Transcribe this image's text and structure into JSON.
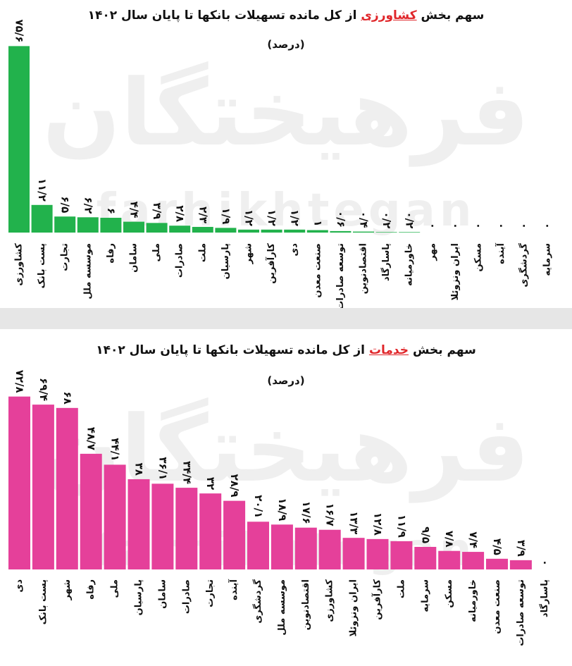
{
  "watermark": {
    "text": "فرهیختگان",
    "latin": "farhikhtegan"
  },
  "chart_data": [
    {
      "type": "bar",
      "title": [
        "سهم  بخش",
        "کشاورزی",
        "از کل مانده تسهیلات بانکها تا پایان سال ۱۴۰۲"
      ],
      "subtitle": "(درصد)",
      "color": "#22b24c",
      "categories": [
        "کشاورزی",
        "پست بانک",
        "تجارت",
        "موسسه ملل",
        "رفاه",
        "سامان",
        "ملی",
        "صادرات",
        "ملت",
        "پارسیان",
        "شهر",
        "کارآفرین",
        "دی",
        "صنعت معدن",
        "توسعه صادرات",
        "اقتصادنوین",
        "پاسارگاد",
        "خاورمیانه",
        "مهر",
        "ایران ونزوئلا",
        "مسکن",
        "آینده",
        "گردشگری",
        "سرمایه"
      ],
      "values": [
        75.6,
        11.2,
        6.5,
        6.2,
        6,
        4.4,
        3.9,
        2.8,
        2.3,
        1.9,
        1.2,
        1.2,
        1.2,
        1,
        0.6,
        0.4,
        0.2,
        0.2,
        0,
        0,
        0,
        0,
        0,
        0
      ],
      "value_labels": [
        "۷۵/۶",
        "۱۱/۲",
        "۶/۵",
        "۶/۲",
        "۶",
        "۴/۴",
        "۳/۹",
        "۲/۸",
        "۲/۳",
        "۱/۹",
        "۱/۲",
        "۱/۲",
        "۱/۲",
        "۱",
        "۰/۶",
        "۰/۴",
        "۰/۲",
        "۰/۲",
        "۰",
        "۰",
        "۰",
        "۰",
        "۰",
        "۰"
      ]
    },
    {
      "type": "bar",
      "title": [
        "سهم  بخش",
        "خدمات",
        "از کل مانده تسهیلات بانکها تا پایان سال ۱۴۰۲"
      ],
      "subtitle": "(درصد)",
      "color": "#e5409a",
      "categories": [
        "دی",
        "پست بانک",
        "شهر",
        "رفاه",
        "ملی",
        "پارسیان",
        "سامان",
        "صادرات",
        "تجارت",
        "آینده",
        "گردشگری",
        "موسسه ملل",
        "اقتصادنوین",
        "کشاورزی",
        "ایران ونزوئلا",
        "کارآفرین",
        "ملت",
        "سرمایه",
        "مسکن",
        "خاورمیانه",
        "صنعت معدن",
        "توسعه صادرات",
        "پاسارگاد"
      ],
      "values": [
        72.8,
        69.4,
        68,
        48.7,
        44.1,
        38,
        36.1,
        34.4,
        32,
        28.9,
        20.1,
        18.9,
        17.6,
        16.7,
        13.3,
        12.8,
        11.9,
        9.5,
        7.8,
        7.4,
        4.5,
        3.9,
        0
      ],
      "value_labels": [
        "۷۲/۸",
        "۶۹/۴",
        "۶۸",
        "۴۸/۷",
        "۴۴/۱",
        "۳۸",
        "۳۶/۱",
        "۳۴/۴",
        "۳۲",
        "۲۸/۹",
        "۲۰/۱",
        "۱۸/۹",
        "۱۷/۶",
        "۱۶/۷",
        "۱۳/۳",
        "۱۲/۸",
        "۱۱/۹",
        "۹/۵",
        "۷/۸",
        "۷/۴",
        "۴/۵",
        "۳/۹",
        "۰"
      ]
    }
  ]
}
